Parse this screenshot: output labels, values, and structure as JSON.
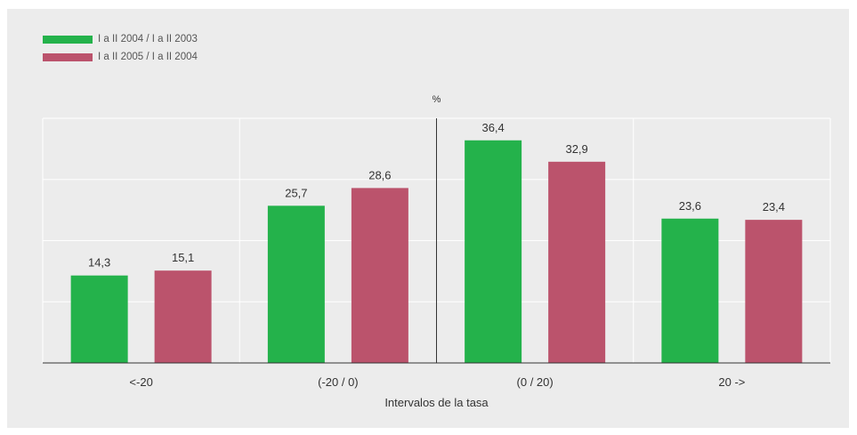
{
  "chart_data": {
    "type": "bar",
    "unit_label": "%",
    "xlabel": "Intervalos de la tasa",
    "ylabel": "",
    "categories": [
      "<-20",
      "(-20 / 0)",
      "(0 / 20)",
      "20 ->"
    ],
    "series": [
      {
        "name": "I a II 2004 / I a II 2003",
        "color": "#24b24b",
        "values": [
          14.3,
          25.7,
          36.4,
          23.6
        ],
        "labels": [
          "14,3",
          "25,7",
          "36,4",
          "23,6"
        ]
      },
      {
        "name": "I a II 2005 / I a II 2004",
        "color": "#bb536c",
        "values": [
          15.1,
          28.6,
          32.9,
          23.4
        ],
        "labels": [
          "15,1",
          "28,6",
          "32,9",
          "23,4"
        ]
      }
    ],
    "ylim": [
      0,
      40
    ],
    "grid": true,
    "legend_position": "top-left"
  }
}
